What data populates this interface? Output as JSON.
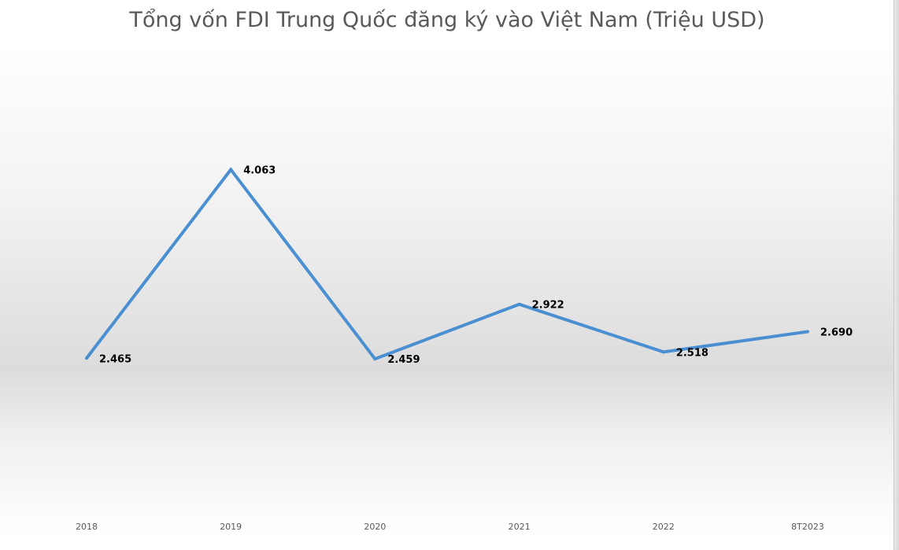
{
  "chart_data": {
    "type": "line",
    "title": "Tổng vốn FDI Trung Quốc đăng ký vào Việt Nam (Triệu USD)",
    "categories": [
      "2018",
      "2019",
      "2020",
      "2021",
      "2022",
      "8T2023"
    ],
    "series": [
      {
        "values": [
          2465,
          4063,
          2459,
          2922,
          2518,
          2690
        ],
        "labels": [
          "2.465",
          "4.063",
          "2.459",
          "2.922",
          "2.518",
          "2.690"
        ]
      }
    ],
    "ylim": [
      1500,
      4900
    ],
    "grid": false,
    "legend": "none",
    "colors": {
      "line": "#4a8fd1",
      "labels": "#000000",
      "ticks": "#595959",
      "title": "#595959"
    }
  }
}
